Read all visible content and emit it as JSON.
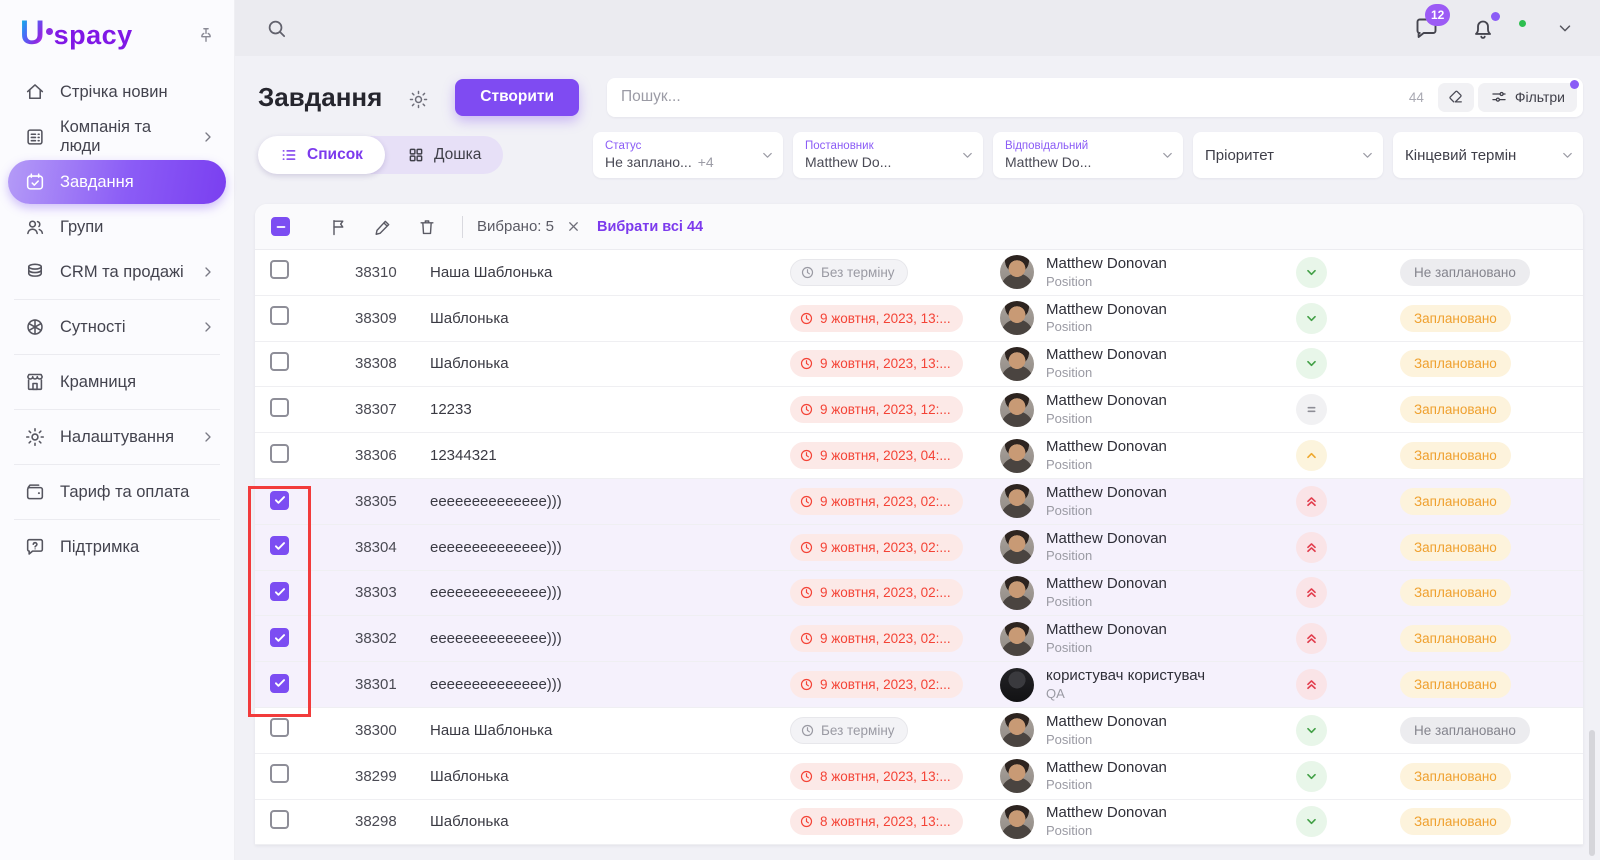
{
  "brand": {
    "u": "U",
    "rest": "spacy"
  },
  "sidebar": {
    "items": [
      {
        "label": "Стрічка новин",
        "icon": "home-icon"
      },
      {
        "label": "Компанія та люди",
        "icon": "company-icon",
        "chevron": true
      },
      {
        "label": "Завдання",
        "icon": "tasks-icon",
        "active": true
      },
      {
        "label": "Групи",
        "icon": "groups-icon"
      },
      {
        "label": "CRM та продажі",
        "icon": "crm-icon",
        "chevron": true
      },
      {
        "label": "Сутності",
        "icon": "entities-icon",
        "chevron": true
      },
      {
        "label": "Крамниця",
        "icon": "store-icon"
      },
      {
        "label": "Налаштування",
        "icon": "settings-icon",
        "chevron": true
      },
      {
        "label": "Тариф та оплата",
        "icon": "billing-icon"
      },
      {
        "label": "Підтримка",
        "icon": "support-icon"
      }
    ]
  },
  "topbar": {
    "messages_badge": "12"
  },
  "page": {
    "title": "Завдання",
    "create_button": "Створити",
    "search_placeholder": "Пошук...",
    "search_count": "44",
    "filters_button": "Фільтри",
    "tabs": [
      {
        "label": "Список",
        "active": true
      },
      {
        "label": "Дошка",
        "active": false
      }
    ],
    "filter_fields": [
      {
        "label": "Статус",
        "value": "Не заплано...",
        "extra": "+4"
      },
      {
        "label": "Постановник",
        "value": "Matthew Do..."
      },
      {
        "label": "Відповідальний",
        "value": "Matthew Do..."
      },
      {
        "plain": "Пріоритет"
      },
      {
        "plain": "Кінцевий термін"
      }
    ]
  },
  "toolbar": {
    "selected_text": "Вибрано: 5",
    "select_all_text": "Вибрати всі 44"
  },
  "table": {
    "rows": [
      {
        "id": "38310",
        "name": "Наша Шаблонька",
        "deadline": "Без терміну",
        "deadline_type": "none",
        "assignee": "Matthew Donovan",
        "position": "Position",
        "avatar": "photo",
        "priority": "low",
        "status": "Не заплановано",
        "status_type": "none",
        "selected": false
      },
      {
        "id": "38309",
        "name": "Шаблонька",
        "deadline": "9 жовтня, 2023, 13:...",
        "deadline_type": "overdue",
        "assignee": "Matthew Donovan",
        "position": "Position",
        "avatar": "photo",
        "priority": "low",
        "status": "Заплановано",
        "status_type": "planned",
        "selected": false
      },
      {
        "id": "38308",
        "name": "Шаблонька",
        "deadline": "9 жовтня, 2023, 13:...",
        "deadline_type": "overdue",
        "assignee": "Matthew Donovan",
        "position": "Position",
        "avatar": "photo",
        "priority": "low",
        "status": "Заплановано",
        "status_type": "planned",
        "selected": false
      },
      {
        "id": "38307",
        "name": "12233",
        "deadline": "9 жовтня, 2023, 12:...",
        "deadline_type": "overdue",
        "assignee": "Matthew Donovan",
        "position": "Position",
        "avatar": "photo",
        "priority": "medium",
        "status": "Заплановано",
        "status_type": "planned",
        "selected": false
      },
      {
        "id": "38306",
        "name": "12344321",
        "deadline": "9 жовтня, 2023, 04:...",
        "deadline_type": "overdue",
        "assignee": "Matthew Donovan",
        "position": "Position",
        "avatar": "photo",
        "priority": "high",
        "status": "Заплановано",
        "status_type": "planned",
        "selected": false
      },
      {
        "id": "38305",
        "name": "eeeeeeeeeeeeee)))",
        "deadline": "9 жовтня, 2023, 02:...",
        "deadline_type": "overdue",
        "assignee": "Matthew Donovan",
        "position": "Position",
        "avatar": "photo",
        "priority": "urgent",
        "status": "Заплановано",
        "status_type": "planned",
        "selected": true
      },
      {
        "id": "38304",
        "name": "eeeeeeeeeeeeee)))",
        "deadline": "9 жовтня, 2023, 02:...",
        "deadline_type": "overdue",
        "assignee": "Matthew Donovan",
        "position": "Position",
        "avatar": "photo",
        "priority": "urgent",
        "status": "Заплановано",
        "status_type": "planned",
        "selected": true
      },
      {
        "id": "38303",
        "name": "eeeeeeeeeeeeee)))",
        "deadline": "9 жовтня, 2023, 02:...",
        "deadline_type": "overdue",
        "assignee": "Matthew Donovan",
        "position": "Position",
        "avatar": "photo",
        "priority": "urgent",
        "status": "Заплановано",
        "status_type": "planned",
        "selected": true
      },
      {
        "id": "38302",
        "name": "eeeeeeeeeeeeee)))",
        "deadline": "9 жовтня, 2023, 02:...",
        "deadline_type": "overdue",
        "assignee": "Matthew Donovan",
        "position": "Position",
        "avatar": "photo",
        "priority": "urgent",
        "status": "Заплановано",
        "status_type": "planned",
        "selected": true
      },
      {
        "id": "38301",
        "name": "eeeeeeeeeeeeee)))",
        "deadline": "9 жовтня, 2023, 02:...",
        "deadline_type": "overdue",
        "assignee": "користувач користувач",
        "position": "QA",
        "avatar": "dark",
        "priority": "urgent",
        "status": "Заплановано",
        "status_type": "planned",
        "selected": true
      },
      {
        "id": "38300",
        "name": "Наша Шаблонька",
        "deadline": "Без терміну",
        "deadline_type": "none",
        "assignee": "Matthew Donovan",
        "position": "Position",
        "avatar": "photo",
        "priority": "low",
        "status": "Не заплановано",
        "status_type": "none",
        "selected": false
      },
      {
        "id": "38299",
        "name": "Шаблонька",
        "deadline": "8 жовтня, 2023, 13:...",
        "deadline_type": "overdue",
        "assignee": "Matthew Donovan",
        "position": "Position",
        "avatar": "photo",
        "priority": "low",
        "status": "Заплановано",
        "status_type": "planned",
        "selected": false
      },
      {
        "id": "38298",
        "name": "Шаблонька",
        "deadline": "8 жовтня, 2023, 13:...",
        "deadline_type": "overdue",
        "assignee": "Matthew Donovan",
        "position": "Position",
        "avatar": "photo",
        "priority": "low",
        "status": "Заплановано",
        "status_type": "planned",
        "selected": false
      }
    ]
  }
}
